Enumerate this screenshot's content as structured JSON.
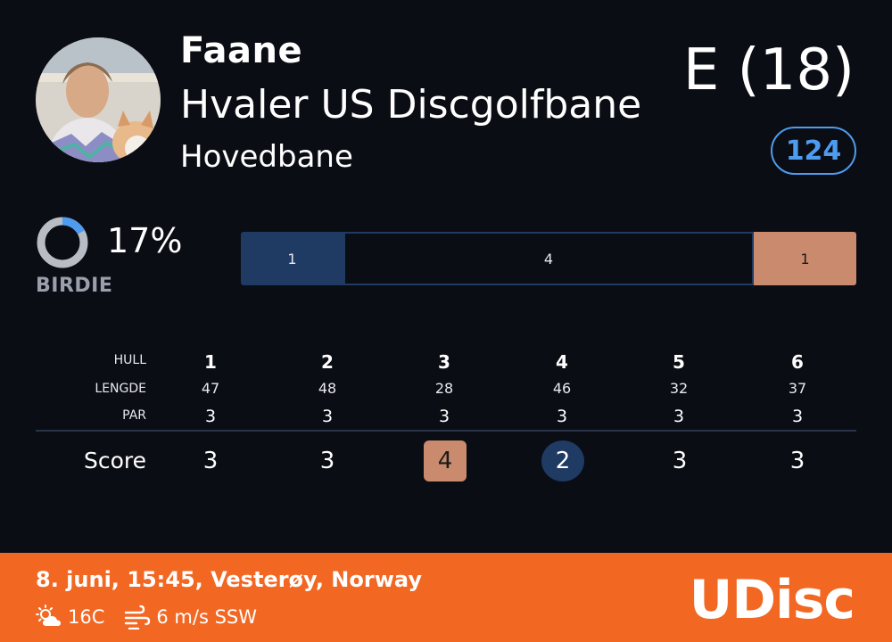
{
  "player": {
    "name": "Faane"
  },
  "course": {
    "name": "Hvaler US Discgolfbane",
    "layout": "Hovedbane"
  },
  "round": {
    "total_score": "E (18)",
    "rating": "124"
  },
  "birdie_stat": {
    "percent_label": "17%",
    "label": "BIRDIE",
    "fraction": 0.17
  },
  "distribution": {
    "birdie": {
      "count": "1",
      "color": "#1f3a63"
    },
    "par": {
      "count": "4",
      "color": "#0b0d14"
    },
    "bogey": {
      "count": "1",
      "color": "#c98a6e"
    }
  },
  "scorecard": {
    "labels": {
      "hole": "HULL",
      "length": "LENGDE",
      "par": "PAR",
      "score": "Score"
    },
    "holes": [
      {
        "number": "1",
        "length": "47",
        "par": "3",
        "score": "3",
        "result": "par"
      },
      {
        "number": "2",
        "length": "48",
        "par": "3",
        "score": "3",
        "result": "par"
      },
      {
        "number": "3",
        "length": "28",
        "par": "3",
        "score": "4",
        "result": "bogey"
      },
      {
        "number": "4",
        "length": "46",
        "par": "3",
        "score": "2",
        "result": "birdie"
      },
      {
        "number": "5",
        "length": "32",
        "par": "3",
        "score": "3",
        "result": "par"
      },
      {
        "number": "6",
        "length": "37",
        "par": "3",
        "score": "3",
        "result": "par"
      }
    ]
  },
  "footer": {
    "date_location": "8. juni, 15:45, Vesterøy, Norway",
    "temperature": "16C",
    "wind": "6 m/s SSW",
    "logo": "UDisc",
    "background_color": "#f26722"
  },
  "colors": {
    "accent_blue": "#4d9cf0",
    "background": "#0b0d14"
  }
}
